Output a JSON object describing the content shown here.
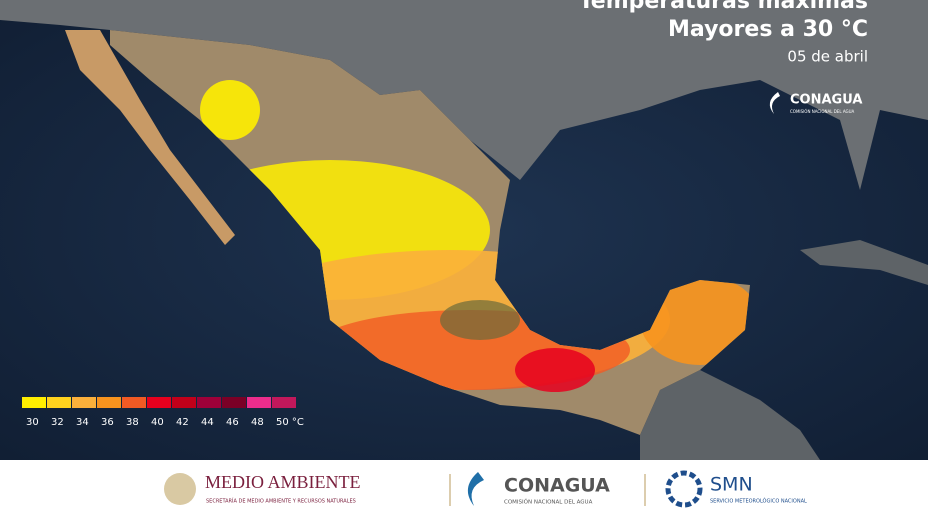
{
  "header": {
    "title": "Temperaturas máximas",
    "subtitle": "Mayores a 30 °C",
    "date": "05 de abril"
  },
  "map_logo": {
    "name": "CONAGUA",
    "tagline": "COMISIÓN NACIONAL DEL AGUA"
  },
  "legend": {
    "colors": [
      "#ffee00",
      "#ffd21e",
      "#fbb03b",
      "#f7931e",
      "#f15a24",
      "#e6001e",
      "#c1001a",
      "#9e0039",
      "#7a0026",
      "#ec2d8c",
      "#c2185b"
    ],
    "ticks": [
      30,
      32,
      34,
      36,
      38,
      40,
      42,
      44,
      46,
      48,
      {
        "value": 50,
        "label": "50 °C"
      }
    ]
  },
  "footer": {
    "semarnat": {
      "name": "MEDIO AMBIENTE",
      "tagline": "SECRETARÍA DE MEDIO AMBIENTE Y RECURSOS NATURALES"
    },
    "conagua": {
      "name": "CONAGUA",
      "tagline": "COMISIÓN NACIONAL DEL AGUA"
    },
    "smn": {
      "name": "SMN",
      "tagline": "SERVICIO METEOROLÓGICO NACIONAL"
    }
  }
}
